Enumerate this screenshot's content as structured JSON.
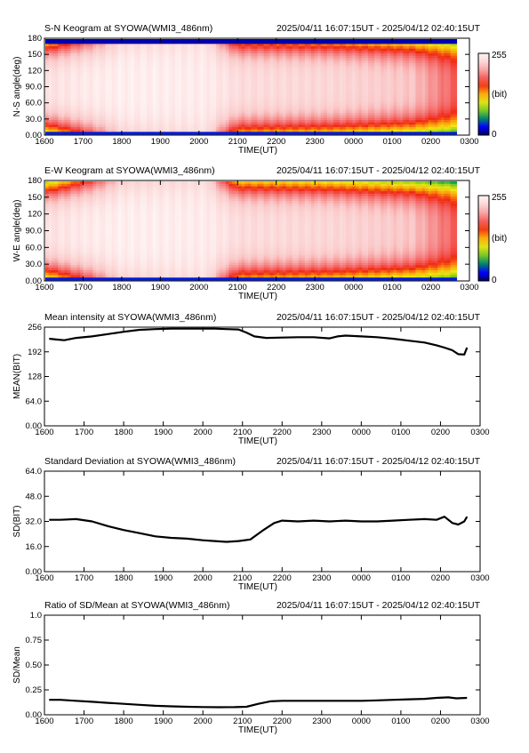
{
  "chart_data": [
    {
      "type": "heatmap",
      "title": "S-N Keogram at SYOWA(WMI3_486nm)",
      "time_range": "2025/04/11 16:07:15UT - 2025/04/12 02:40:15UT",
      "xlabel": "TIME(UT)",
      "ylabel": "N-S angle(deg)",
      "x_ticks": [
        "1600",
        "1700",
        "1800",
        "1900",
        "2000",
        "2100",
        "2200",
        "2300",
        "0000",
        "0100",
        "0200",
        "0300"
      ],
      "y_ticks": [
        "0.00",
        "30.0",
        "60.0",
        "90.0",
        "120",
        "150",
        "180"
      ],
      "ylim": [
        0,
        180
      ],
      "colorbar": {
        "max": "255",
        "mid": "(bit)",
        "min": "0"
      },
      "description_profile": [
        {
          "t": 0.0,
          "center": 0.93,
          "edge": 0.3
        },
        {
          "t": 0.8,
          "center": 0.96,
          "edge": 0.55
        },
        {
          "t": 2.0,
          "center": 0.98,
          "edge": 0.88
        },
        {
          "t": 4.2,
          "center": 0.97,
          "edge": 0.92
        },
        {
          "t": 5.0,
          "center": 0.92,
          "edge": 0.45
        },
        {
          "t": 7.5,
          "center": 0.9,
          "edge": 0.4
        },
        {
          "t": 9.5,
          "center": 0.85,
          "edge": 0.3
        },
        {
          "t": 10.6,
          "center": 0.7,
          "edge": 0.2
        }
      ]
    },
    {
      "type": "heatmap",
      "title": "E-W Keogram at SYOWA(WMI3_486nm)",
      "time_range": "2025/04/11 16:07:15UT - 2025/04/12 02:40:15UT",
      "xlabel": "TIME(UT)",
      "ylabel": "W-E angle(deg)",
      "x_ticks": [
        "1600",
        "1700",
        "1800",
        "1900",
        "2000",
        "2100",
        "2200",
        "2300",
        "0000",
        "0100",
        "0200",
        "0300"
      ],
      "y_ticks": [
        "0.00",
        "30.0",
        "60.0",
        "90.0",
        "120",
        "150",
        "180"
      ],
      "ylim": [
        0,
        180
      ],
      "colorbar": {
        "max": "255",
        "mid": "(bit)",
        "min": "0"
      },
      "description_profile": [
        {
          "t": 0.0,
          "center": 0.93,
          "edge": 0.3
        },
        {
          "t": 0.8,
          "center": 0.96,
          "edge": 0.55
        },
        {
          "t": 2.0,
          "center": 0.98,
          "edge": 0.88
        },
        {
          "t": 4.2,
          "center": 0.97,
          "edge": 0.92
        },
        {
          "t": 5.0,
          "center": 0.92,
          "edge": 0.45
        },
        {
          "t": 7.5,
          "center": 0.9,
          "edge": 0.4
        },
        {
          "t": 9.5,
          "center": 0.85,
          "edge": 0.3
        },
        {
          "t": 10.6,
          "center": 0.7,
          "edge": 0.2
        }
      ]
    },
    {
      "type": "line",
      "title": "Mean intensity at SYOWA(WMI3_486nm)",
      "time_range": "2025/04/11 16:07:15UT - 2025/04/12 02:40:15UT",
      "xlabel": "TIME(UT)",
      "ylabel": "MEAN(BIT)",
      "x_ticks": [
        "1600",
        "1700",
        "1800",
        "1900",
        "2000",
        "2100",
        "2200",
        "2300",
        "0000",
        "0100",
        "0200",
        "0300"
      ],
      "y_ticks": [
        "0.00",
        "64.0",
        "128",
        "192",
        "256"
      ],
      "ylim": [
        0,
        256
      ],
      "x": [
        0.12,
        0.3,
        0.5,
        0.8,
        1.2,
        1.6,
        2.0,
        2.4,
        2.8,
        3.2,
        3.6,
        4.0,
        4.3,
        4.6,
        4.9,
        5.1,
        5.3,
        5.6,
        6.0,
        6.4,
        6.8,
        7.2,
        7.4,
        7.6,
        8.0,
        8.4,
        8.8,
        9.2,
        9.6,
        9.9,
        10.1,
        10.3,
        10.45,
        10.6,
        10.67
      ],
      "y": [
        226,
        224,
        222,
        228,
        232,
        238,
        244,
        249,
        251,
        252,
        252,
        252,
        252,
        251,
        250,
        242,
        232,
        228,
        229,
        230,
        230,
        227,
        232,
        234,
        232,
        230,
        226,
        221,
        216,
        209,
        203,
        196,
        186,
        185,
        203
      ]
    },
    {
      "type": "line",
      "title": "Standard Deviation at SYOWA(WMI3_486nm)",
      "time_range": "2025/04/11 16:07:15UT - 2025/04/12 02:40:15UT",
      "xlabel": "TIME(UT)",
      "ylabel": "SD(BIT)",
      "x_ticks": [
        "1600",
        "1700",
        "1800",
        "1900",
        "2000",
        "2100",
        "2200",
        "2300",
        "0000",
        "0100",
        "0200",
        "0300"
      ],
      "y_ticks": [
        "0.00",
        "16.0",
        "32.0",
        "48.0",
        "64.0"
      ],
      "ylim": [
        0,
        64
      ],
      "x": [
        0.12,
        0.4,
        0.8,
        1.2,
        1.6,
        2.0,
        2.4,
        2.8,
        3.2,
        3.6,
        4.0,
        4.3,
        4.6,
        4.9,
        5.2,
        5.5,
        5.8,
        6.0,
        6.4,
        6.8,
        7.2,
        7.6,
        8.0,
        8.4,
        8.8,
        9.2,
        9.6,
        9.9,
        10.1,
        10.3,
        10.45,
        10.6,
        10.67
      ],
      "y": [
        33,
        33,
        33.5,
        32,
        29,
        26.5,
        24.5,
        22.5,
        21.5,
        21,
        20,
        19.5,
        19,
        19.5,
        20.5,
        26,
        31,
        32.5,
        32,
        32.5,
        32,
        32.5,
        32,
        32,
        32.5,
        33,
        33.5,
        33,
        35,
        31,
        30,
        32,
        35
      ]
    },
    {
      "type": "line",
      "title": "Ratio of SD/Mean at SYOWA(WMI3_486nm)",
      "time_range": "2025/04/11 16:07:15UT - 2025/04/12 02:40:15UT",
      "xlabel": "TIME(UT)",
      "ylabel": "SD/Mean",
      "x_ticks": [
        "1600",
        "1700",
        "1800",
        "1900",
        "2000",
        "2100",
        "2200",
        "2300",
        "0000",
        "0100",
        "0200",
        "0300"
      ],
      "y_ticks": [
        "0.00",
        "0.25",
        "0.50",
        "0.75",
        "1.0"
      ],
      "ylim": [
        0,
        1.0
      ],
      "x": [
        0.12,
        0.4,
        0.8,
        1.2,
        1.6,
        2.0,
        2.4,
        2.8,
        3.2,
        3.6,
        4.0,
        4.4,
        4.8,
        5.1,
        5.4,
        5.7,
        6.0,
        6.4,
        6.8,
        7.2,
        7.6,
        8.0,
        8.4,
        8.8,
        9.2,
        9.6,
        9.9,
        10.2,
        10.4,
        10.67
      ],
      "y": [
        0.15,
        0.15,
        0.14,
        0.13,
        0.12,
        0.11,
        0.1,
        0.09,
        0.085,
        0.08,
        0.078,
        0.076,
        0.077,
        0.08,
        0.11,
        0.135,
        0.14,
        0.14,
        0.14,
        0.14,
        0.14,
        0.14,
        0.145,
        0.15,
        0.155,
        0.16,
        0.17,
        0.175,
        0.165,
        0.17
      ]
    }
  ],
  "colors": {
    "line": "#000000",
    "frame": "#000000"
  }
}
